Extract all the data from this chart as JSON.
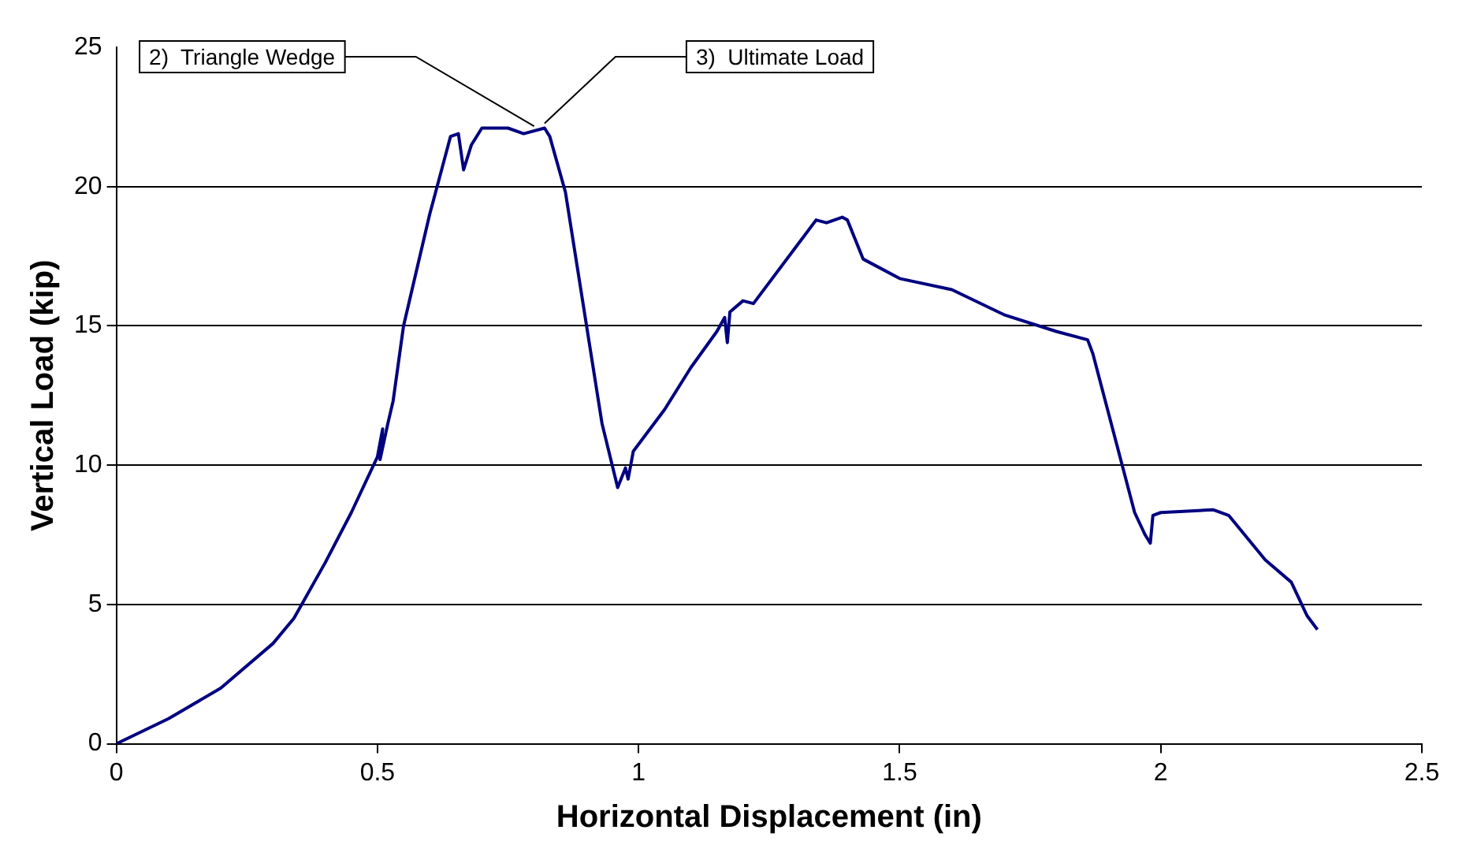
{
  "chart_data": {
    "type": "line",
    "xlabel": "Horizontal Displacement (in)",
    "ylabel": "Vertical Load (kip)",
    "xlim": [
      0,
      2.5
    ],
    "xticks": [
      0,
      0.5,
      1,
      1.5,
      2,
      2.5
    ],
    "ylim": [
      0,
      25
    ],
    "yticks": [
      0,
      5,
      10,
      15,
      20,
      25
    ],
    "grid": "y",
    "marker": "none",
    "line_style": "solid",
    "series": [
      {
        "color": "#000080",
        "x": [
          0,
          0.1,
          0.2,
          0.3,
          0.34,
          0.4,
          0.45,
          0.5,
          0.51,
          0.505,
          0.52,
          0.53,
          0.55,
          0.6,
          0.64,
          0.655,
          0.665,
          0.68,
          0.7,
          0.75,
          0.78,
          0.82,
          0.83,
          0.86,
          0.93,
          0.96,
          0.975,
          0.98,
          0.99,
          1.05,
          1.1,
          1.15,
          1.165,
          1.17,
          1.175,
          1.2,
          1.22,
          1.3,
          1.34,
          1.36,
          1.39,
          1.4,
          1.43,
          1.5,
          1.6,
          1.7,
          1.8,
          1.86,
          1.87,
          1.95,
          1.97,
          1.98,
          1.985,
          2.0,
          2.1,
          2.13,
          2.2,
          2.25,
          2.28,
          2.3
        ],
        "values": [
          0,
          0.9,
          2.0,
          3.6,
          4.5,
          6.5,
          8.3,
          10.3,
          11.3,
          10.2,
          11.5,
          12.3,
          15,
          19,
          21.8,
          21.9,
          20.6,
          21.5,
          22.1,
          22.1,
          21.9,
          22.1,
          21.8,
          19.8,
          11.5,
          9.2,
          9.9,
          9.5,
          10.5,
          12,
          13.5,
          14.8,
          15.3,
          14.4,
          15.5,
          15.9,
          15.8,
          17.8,
          18.8,
          18.7,
          18.9,
          18.8,
          17.4,
          16.7,
          16.3,
          15.4,
          14.8,
          14.5,
          14.0,
          8.3,
          7.5,
          7.2,
          8.2,
          8.3,
          8.4,
          8.2,
          6.6,
          5.8,
          4.6,
          4.1
        ]
      }
    ],
    "annotations": [
      {
        "text": "2)  Triangle Wedge",
        "x": 0.8,
        "y": 22.0
      },
      {
        "text": "3)  Ultimate Load",
        "x": 0.82,
        "y": 22.1
      }
    ]
  }
}
